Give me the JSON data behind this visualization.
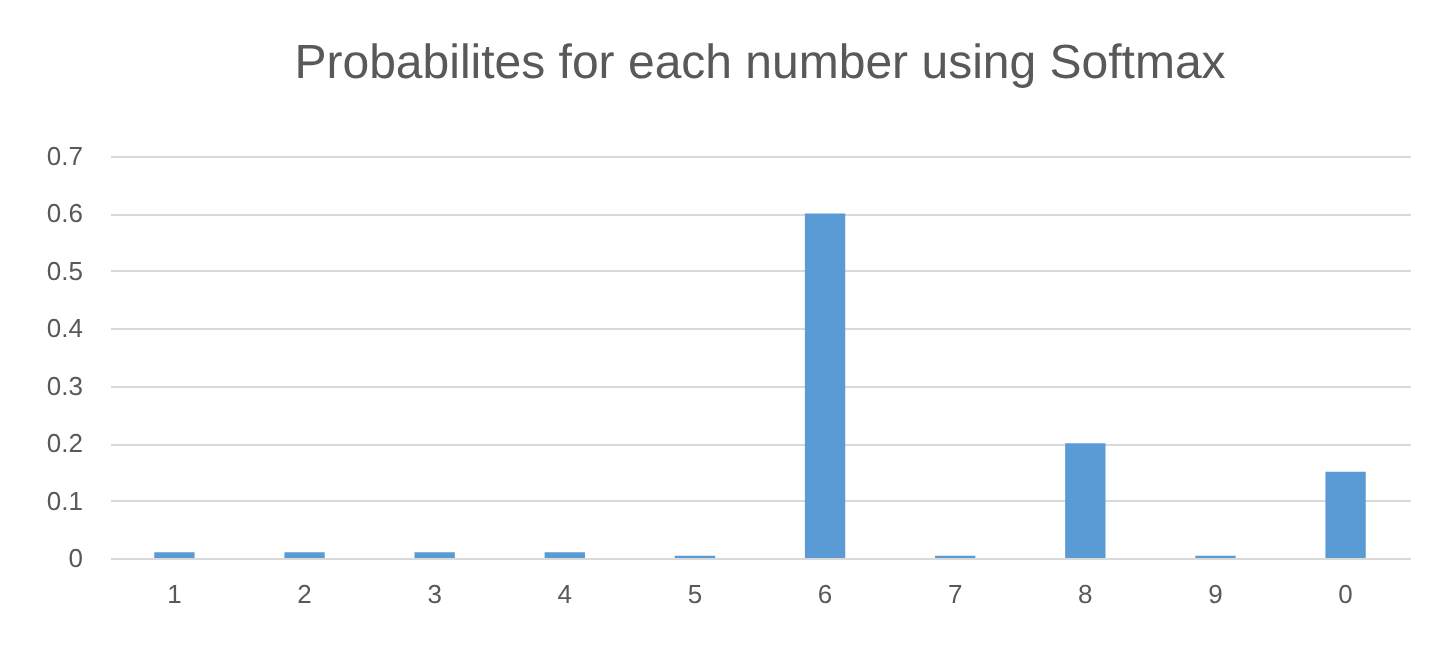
{
  "chart_data": {
    "type": "bar",
    "title": "Probabilites for each number using Softmax",
    "categories": [
      "1",
      "2",
      "3",
      "4",
      "5",
      "6",
      "7",
      "8",
      "9",
      "0"
    ],
    "values": [
      0.01,
      0.01,
      0.01,
      0.01,
      0.004,
      0.6,
      0.004,
      0.2,
      0.004,
      0.15
    ],
    "color": "#5b9bd5",
    "ylim": [
      0,
      0.7
    ],
    "yticks": [
      0,
      0.1,
      0.2,
      0.3,
      0.4,
      0.5,
      0.6,
      0.7
    ],
    "grid": "y"
  }
}
